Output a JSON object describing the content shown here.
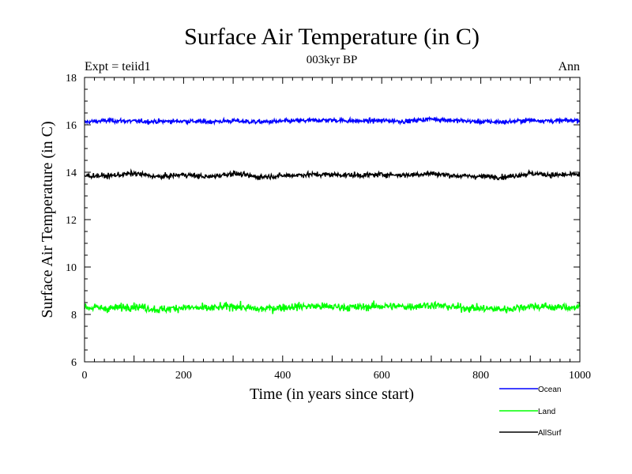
{
  "chart_data": {
    "type": "line",
    "title": "Surface Air Temperature (in C)",
    "subtitle": "003kyr BP",
    "left_note": "Expt = teiid1",
    "right_note": "Ann",
    "xlabel": "Time (in years since start)",
    "ylabel": "Surface Air Temperature (in C)",
    "xlim": [
      0,
      1000
    ],
    "ylim": [
      6,
      18
    ],
    "xticks": [
      0,
      200,
      400,
      600,
      800,
      1000
    ],
    "yticks": [
      6,
      8,
      10,
      12,
      14,
      16,
      18
    ],
    "grid": false,
    "legend_position": "bottom-right, below plot",
    "series": [
      {
        "name": "Ocean",
        "color": "#0000ff",
        "mean": 16.15,
        "noise": 0.08,
        "x": [
          0,
          50,
          100,
          150,
          200,
          250,
          300,
          350,
          400,
          450,
          500,
          550,
          600,
          650,
          700,
          750,
          800,
          850,
          900,
          950,
          1000
        ],
        "values": [
          16.12,
          16.18,
          16.15,
          16.14,
          16.16,
          16.13,
          16.17,
          16.12,
          16.15,
          16.18,
          16.2,
          16.16,
          16.18,
          16.15,
          16.25,
          16.18,
          16.13,
          16.12,
          16.2,
          16.16,
          16.2
        ]
      },
      {
        "name": "Land",
        "color": "#00ff00",
        "mean": 8.3,
        "noise": 0.14,
        "x": [
          0,
          50,
          100,
          150,
          200,
          250,
          300,
          350,
          400,
          450,
          500,
          550,
          600,
          650,
          700,
          750,
          800,
          850,
          900,
          950,
          1000
        ],
        "values": [
          8.3,
          8.25,
          8.35,
          8.2,
          8.3,
          8.25,
          8.35,
          8.22,
          8.3,
          8.35,
          8.32,
          8.3,
          8.35,
          8.33,
          8.4,
          8.3,
          8.25,
          8.22,
          8.35,
          8.3,
          8.3
        ]
      },
      {
        "name": "AllSurf",
        "color": "#000000",
        "mean": 13.85,
        "noise": 0.09,
        "x": [
          0,
          50,
          100,
          150,
          200,
          250,
          300,
          350,
          400,
          450,
          500,
          550,
          600,
          650,
          700,
          750,
          800,
          850,
          900,
          950,
          1000
        ],
        "values": [
          13.85,
          13.85,
          13.95,
          13.8,
          13.9,
          13.8,
          13.95,
          13.8,
          13.85,
          13.9,
          13.9,
          13.87,
          13.9,
          13.88,
          13.95,
          13.85,
          13.82,
          13.8,
          13.95,
          13.88,
          13.9
        ]
      }
    ]
  }
}
